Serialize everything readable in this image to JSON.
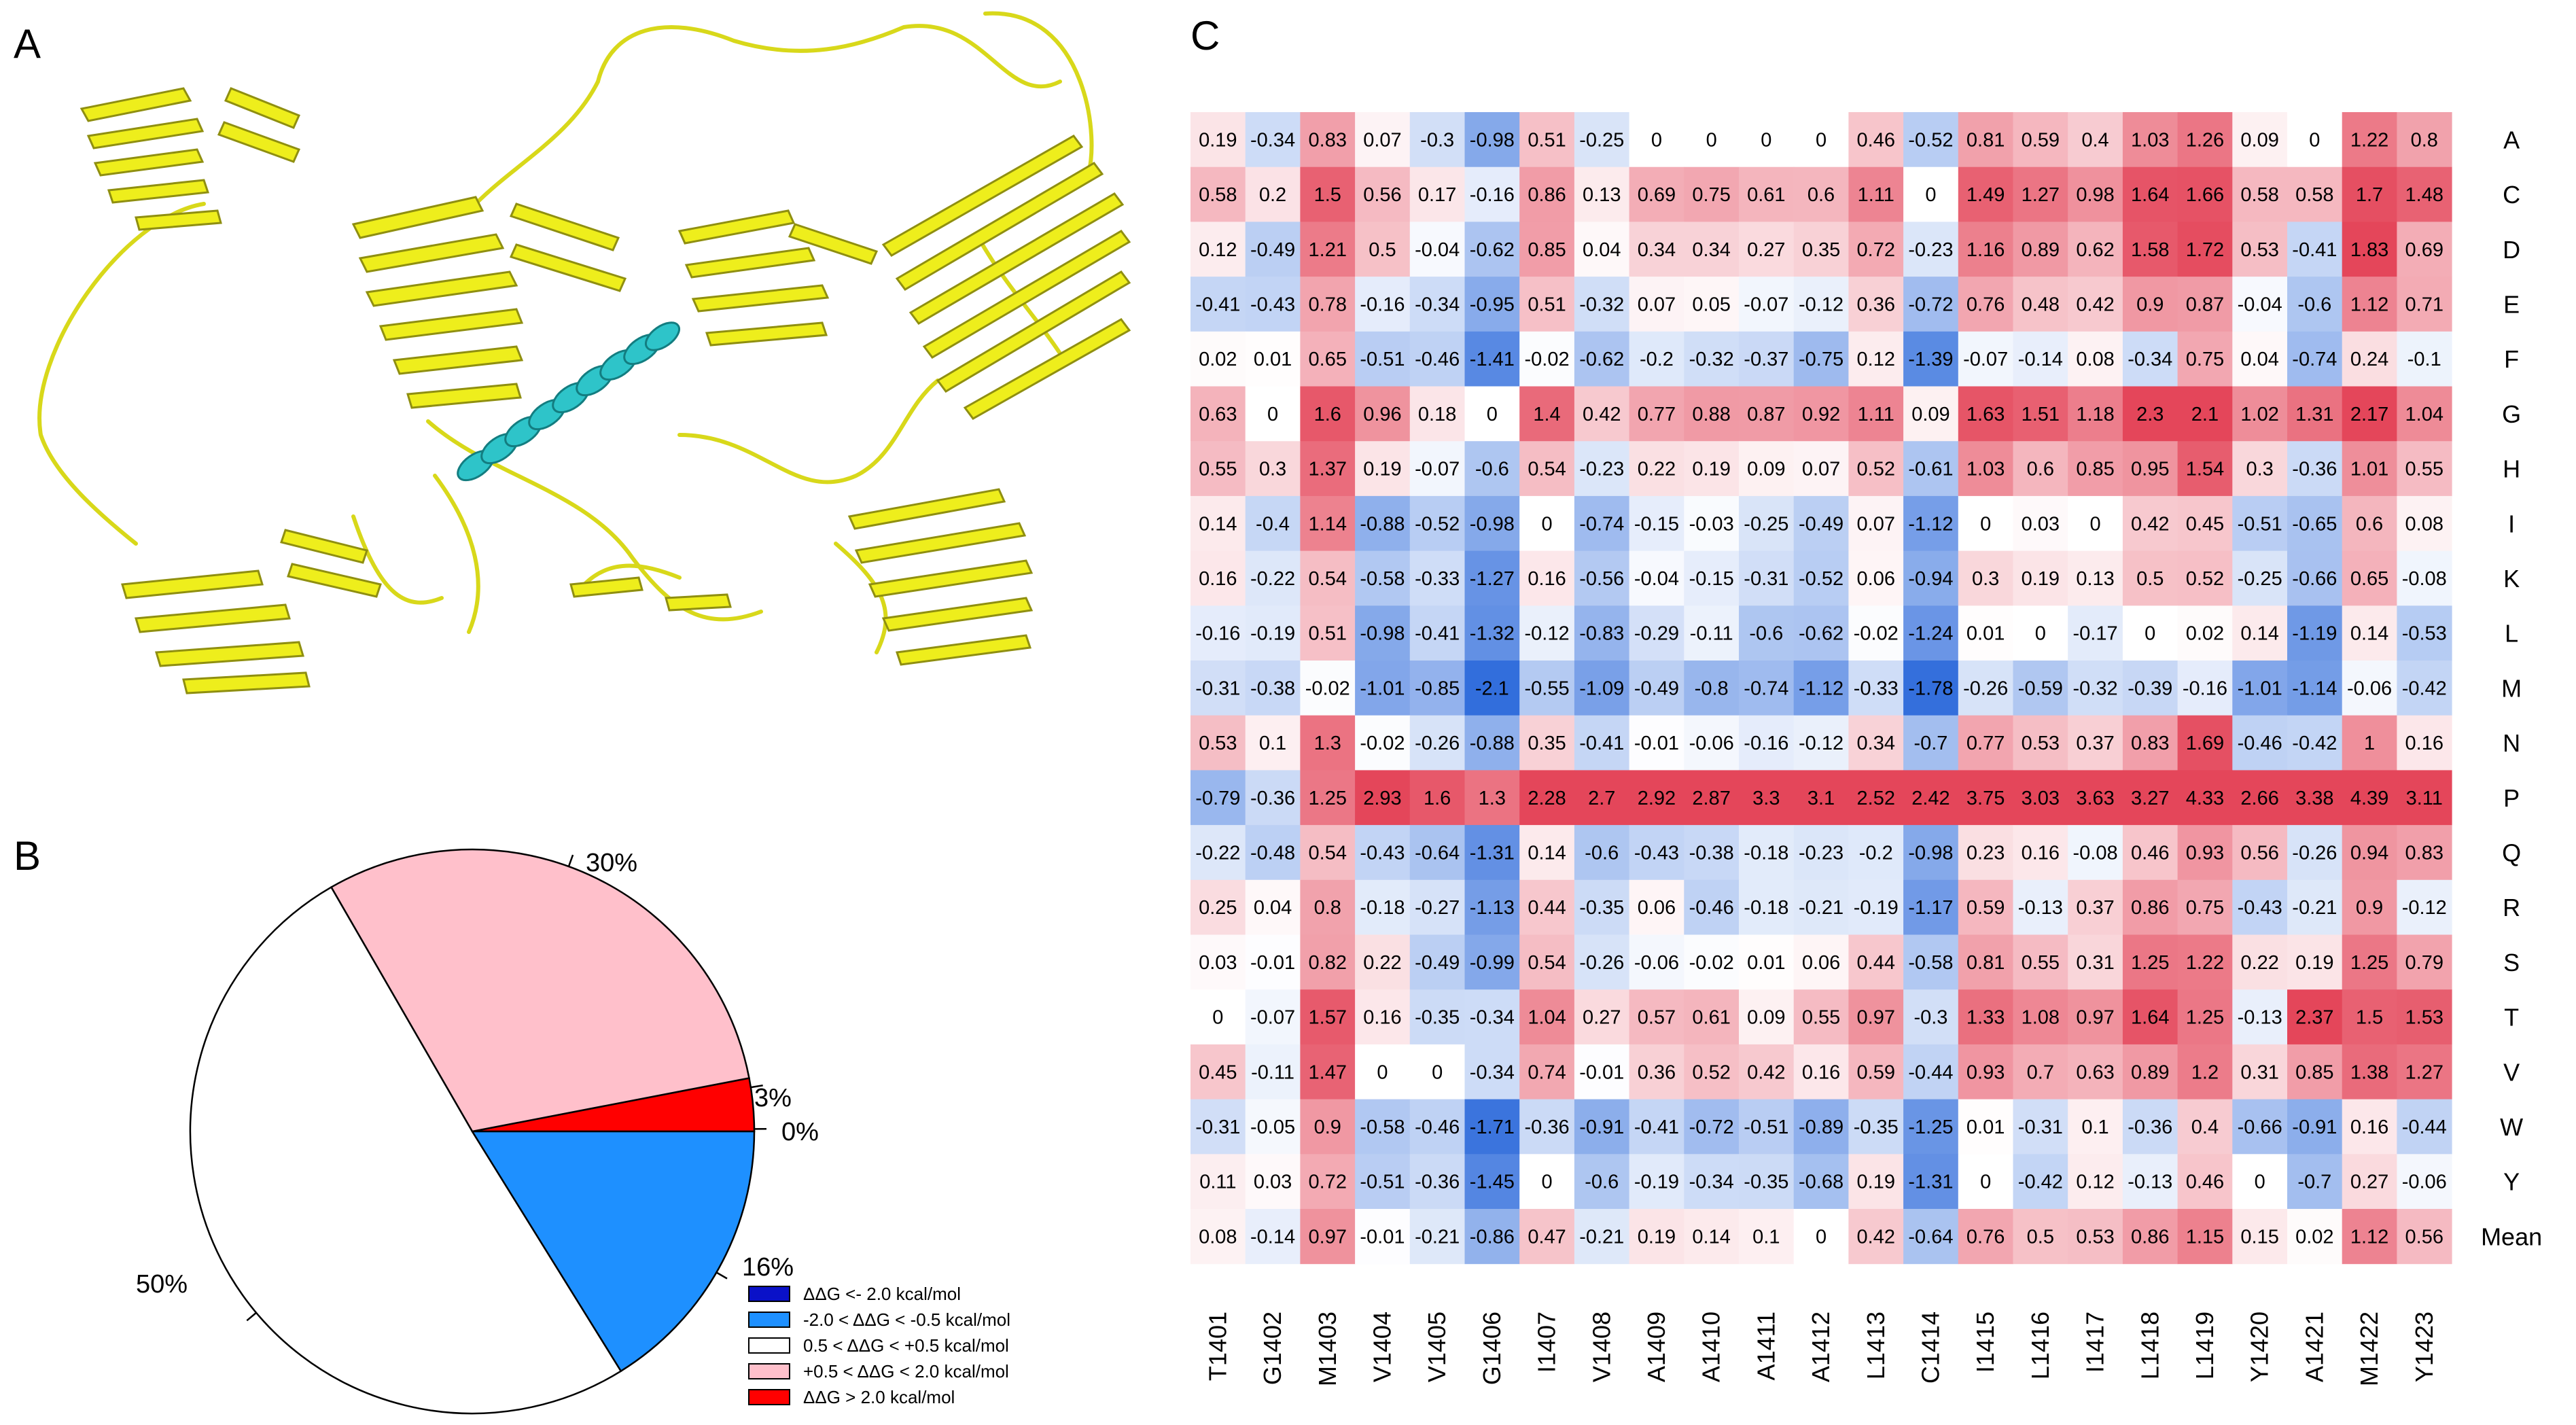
{
  "panels": {
    "a": "A",
    "b": "B",
    "c": "C"
  },
  "colors": {
    "helix": "#2ec4c9",
    "ribbon": "#eeee1c",
    "ribbon_dark": "#8f8f10",
    "neg_strong": "#0a11c8",
    "neg": "#1e90ff",
    "neutral": "#ffffff",
    "pos": "#ffc0cb",
    "pos_strong": "#ff0000"
  },
  "chart_data": [
    {
      "type": "pie",
      "title": "",
      "slices": [
        {
          "name": "ΔΔG <- 2.0 kcal/mol",
          "value": 0,
          "label": "0%",
          "color": "#0a11c8"
        },
        {
          "name": "-2.0 < ΔΔG < -0.5 kcal/mol",
          "value": 16,
          "label": "16%",
          "color": "#1e90ff"
        },
        {
          "name": "0.5 < ΔΔG < +0.5 kcal/mol",
          "value": 50,
          "label": "50%",
          "color": "#ffffff"
        },
        {
          "name": "+0.5 < ΔΔG < 2.0 kcal/mol",
          "value": 30,
          "label": "30%",
          "color": "#ffc0cb"
        },
        {
          "name": "ΔΔG > 2.0 kcal/mol",
          "value": 3,
          "label": "3%",
          "color": "#ff0000"
        }
      ],
      "legend": [
        "ΔΔG <- 2.0 kcal/mol",
        "-2.0 < ΔΔG < -0.5 kcal/mol",
        "0.5 < ΔΔG < +0.5 kcal/mol",
        "+0.5 < ΔΔG < 2.0 kcal/mol",
        "ΔΔG > 2.0 kcal/mol"
      ]
    },
    {
      "type": "heatmap",
      "title": "",
      "columns": [
        "T1401",
        "G1402",
        "M1403",
        "V1404",
        "V1405",
        "G1406",
        "I1407",
        "V1408",
        "A1409",
        "A1410",
        "A1411",
        "A1412",
        "L1413",
        "C1414",
        "I1415",
        "L1416",
        "I1417",
        "L1418",
        "L1419",
        "Y1420",
        "A1421",
        "M1422",
        "Y1423"
      ],
      "rows": [
        "A",
        "C",
        "D",
        "E",
        "F",
        "G",
        "H",
        "I",
        "K",
        "L",
        "M",
        "N",
        "P",
        "Q",
        "R",
        "S",
        "T",
        "V",
        "W",
        "Y",
        "Mean"
      ],
      "values": [
        [
          0.19,
          -0.34,
          0.83,
          0.07,
          -0.3,
          -0.98,
          0.51,
          -0.25,
          0,
          0,
          0,
          0,
          0.46,
          -0.52,
          0.81,
          0.59,
          0.4,
          1.03,
          1.26,
          0.09,
          0,
          1.22,
          0.8
        ],
        [
          0.58,
          0.2,
          1.5,
          0.56,
          0.17,
          -0.16,
          0.86,
          0.13,
          0.69,
          0.75,
          0.61,
          0.6,
          1.11,
          0,
          1.49,
          1.27,
          0.98,
          1.64,
          1.66,
          0.58,
          0.58,
          1.7,
          1.48
        ],
        [
          0.12,
          -0.49,
          1.21,
          0.5,
          -0.04,
          -0.62,
          0.85,
          0.04,
          0.34,
          0.34,
          0.27,
          0.35,
          0.72,
          -0.23,
          1.16,
          0.89,
          0.62,
          1.58,
          1.72,
          0.53,
          -0.41,
          1.83,
          0.69
        ],
        [
          -0.41,
          -0.43,
          0.78,
          -0.16,
          -0.34,
          -0.95,
          0.51,
          -0.32,
          0.07,
          0.05,
          -0.07,
          -0.12,
          0.36,
          -0.72,
          0.76,
          0.48,
          0.42,
          0.9,
          0.87,
          -0.04,
          -0.6,
          1.12,
          0.71
        ],
        [
          0.02,
          0.01,
          0.65,
          -0.51,
          -0.46,
          -1.41,
          -0.02,
          -0.62,
          -0.2,
          -0.32,
          -0.37,
          -0.75,
          0.12,
          -1.39,
          -0.07,
          -0.14,
          0.08,
          -0.34,
          0.75,
          0.04,
          -0.74,
          0.24,
          -0.1
        ],
        [
          0.63,
          0,
          1.6,
          0.96,
          0.18,
          0,
          1.4,
          0.42,
          0.77,
          0.88,
          0.87,
          0.92,
          1.11,
          0.09,
          1.63,
          1.51,
          1.18,
          2.3,
          2.1,
          1.02,
          1.31,
          2.17,
          1.04
        ],
        [
          0.55,
          0.3,
          1.37,
          0.19,
          -0.07,
          -0.6,
          0.54,
          -0.23,
          0.22,
          0.19,
          0.09,
          0.07,
          0.52,
          -0.61,
          1.03,
          0.6,
          0.85,
          0.95,
          1.54,
          0.3,
          -0.36,
          1.01,
          0.55
        ],
        [
          0.14,
          -0.4,
          1.14,
          -0.88,
          -0.52,
          -0.98,
          0,
          -0.74,
          -0.15,
          -0.03,
          -0.25,
          -0.49,
          0.07,
          -1.12,
          0,
          0.03,
          0,
          0.42,
          0.45,
          -0.51,
          -0.65,
          0.6,
          0.08
        ],
        [
          0.16,
          -0.22,
          0.54,
          -0.58,
          -0.33,
          -1.27,
          0.16,
          -0.56,
          -0.04,
          -0.15,
          -0.31,
          -0.52,
          0.06,
          -0.94,
          0.3,
          0.19,
          0.13,
          0.5,
          0.52,
          -0.25,
          -0.66,
          0.65,
          -0.08
        ],
        [
          -0.16,
          -0.19,
          0.51,
          -0.98,
          -0.41,
          -1.32,
          -0.12,
          -0.83,
          -0.29,
          -0.11,
          -0.6,
          -0.62,
          -0.02,
          -1.24,
          0.01,
          0,
          -0.17,
          0,
          0.02,
          0.14,
          -1.19,
          0.14,
          -0.53
        ],
        [
          -0.31,
          -0.38,
          -0.02,
          -1.01,
          -0.85,
          -2.1,
          -0.55,
          -1.09,
          -0.49,
          -0.8,
          -0.74,
          -1.12,
          -0.33,
          -1.78,
          -0.26,
          -0.59,
          -0.32,
          -0.39,
          -0.16,
          -1.01,
          -1.14,
          -0.06,
          -0.42
        ],
        [
          0.53,
          0.1,
          1.3,
          -0.02,
          -0.26,
          -0.88,
          0.35,
          -0.41,
          -0.01,
          -0.06,
          -0.16,
          -0.12,
          0.34,
          -0.7,
          0.77,
          0.53,
          0.37,
          0.83,
          1.69,
          -0.46,
          -0.42,
          1,
          0.16
        ],
        [
          -0.79,
          -0.36,
          1.25,
          2.93,
          1.6,
          1.3,
          2.28,
          2.7,
          2.92,
          2.87,
          3.3,
          3.1,
          2.52,
          2.42,
          3.75,
          3.03,
          3.63,
          3.27,
          4.33,
          2.66,
          3.38,
          4.39,
          3.11
        ],
        [
          -0.22,
          -0.48,
          0.54,
          -0.43,
          -0.64,
          -1.31,
          0.14,
          -0.6,
          -0.43,
          -0.38,
          -0.18,
          -0.23,
          -0.2,
          -0.98,
          0.23,
          0.16,
          -0.08,
          0.46,
          0.93,
          0.56,
          -0.26,
          0.94,
          0.83
        ],
        [
          0.25,
          0.04,
          0.8,
          -0.18,
          -0.27,
          -1.13,
          0.44,
          -0.35,
          0.06,
          -0.46,
          -0.18,
          -0.21,
          -0.19,
          -1.17,
          0.59,
          -0.13,
          0.37,
          0.86,
          0.75,
          -0.43,
          -0.21,
          0.9,
          -0.12
        ],
        [
          0.03,
          -0.01,
          0.82,
          0.22,
          -0.49,
          -0.99,
          0.54,
          -0.26,
          -0.06,
          -0.02,
          0.01,
          0.06,
          0.44,
          -0.58,
          0.81,
          0.55,
          0.31,
          1.25,
          1.22,
          0.22,
          0.19,
          1.25,
          0.79
        ],
        [
          0,
          -0.07,
          1.57,
          0.16,
          -0.35,
          -0.34,
          1.04,
          0.27,
          0.57,
          0.61,
          0.09,
          0.55,
          0.97,
          -0.3,
          1.33,
          1.08,
          0.97,
          1.64,
          1.25,
          -0.13,
          2.37,
          1.5,
          1.53
        ],
        [
          0.45,
          -0.11,
          1.47,
          0,
          0,
          -0.34,
          0.74,
          -0.01,
          0.36,
          0.52,
          0.42,
          0.16,
          0.59,
          -0.44,
          0.93,
          0.7,
          0.63,
          0.89,
          1.2,
          0.31,
          0.85,
          1.38,
          1.27
        ],
        [
          -0.31,
          -0.05,
          0.9,
          -0.58,
          -0.46,
          -1.71,
          -0.36,
          -0.91,
          -0.41,
          -0.72,
          -0.51,
          -0.89,
          -0.35,
          -1.25,
          0.01,
          -0.31,
          0.1,
          -0.36,
          0.4,
          -0.66,
          -0.91,
          0.16,
          -0.44
        ],
        [
          0.11,
          0.03,
          0.72,
          -0.51,
          -0.36,
          -1.45,
          0,
          -0.6,
          -0.19,
          -0.34,
          -0.35,
          -0.68,
          0.19,
          -1.31,
          0,
          -0.42,
          0.12,
          -0.13,
          0.46,
          0,
          -0.7,
          0.27,
          -0.06
        ],
        [
          0.08,
          -0.14,
          0.97,
          -0.01,
          -0.21,
          -0.86,
          0.47,
          -0.21,
          0.19,
          0.14,
          0.1,
          0,
          0.42,
          -0.64,
          0.76,
          0.5,
          0.53,
          0.86,
          1.15,
          0.15,
          0.02,
          1.12,
          0.56
        ]
      ]
    }
  ]
}
